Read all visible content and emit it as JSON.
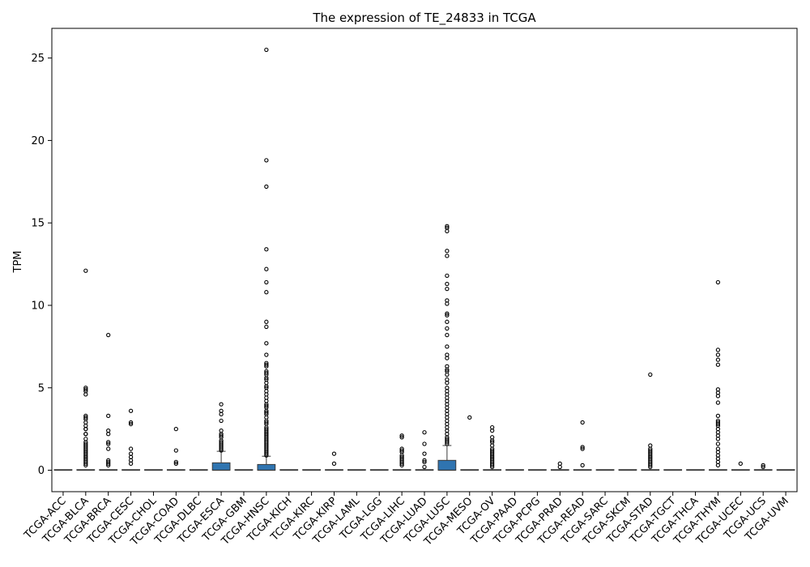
{
  "chart_data": {
    "type": "box",
    "title": "The expression of TE_24833 in TCGA",
    "xlabel": "",
    "ylabel": "TPM",
    "ylim": [
      -1.3,
      26.8
    ],
    "yticks": [
      0,
      5,
      10,
      15,
      20,
      25
    ],
    "categories": [
      "TCGA-ACC",
      "TCGA-BLCA",
      "TCGA-BRCA",
      "TCGA-CESC",
      "TCGA-CHOL",
      "TCGA-COAD",
      "TCGA-DLBC",
      "TCGA-ESCA",
      "TCGA-GBM",
      "TCGA-HNSC",
      "TCGA-KICH",
      "TCGA-KIRC",
      "TCGA-KIRP",
      "TCGA-LAML",
      "TCGA-LGG",
      "TCGA-LIHC",
      "TCGA-LUAD",
      "TCGA-LUSC",
      "TCGA-MESO",
      "TCGA-OV",
      "TCGA-PAAD",
      "TCGA-PCPG",
      "TCGA-PRAD",
      "TCGA-READ",
      "TCGA-SARC",
      "TCGA-SKCM",
      "TCGA-STAD",
      "TCGA-TGCT",
      "TCGA-THCA",
      "TCGA-THYM",
      "TCGA-UCEC",
      "TCGA-UCS",
      "TCGA-UVM"
    ],
    "boxes": [
      {
        "q1": 0,
        "median": 0,
        "q3": 0,
        "whisker_low": 0,
        "whisker_high": 0,
        "fliers": []
      },
      {
        "q1": 0,
        "median": 0,
        "q3": 0,
        "whisker_low": 0,
        "whisker_high": 0,
        "fliers": [
          12.1,
          5.0,
          4.9,
          4.8,
          4.6,
          3.3,
          3.2,
          3.1,
          2.9,
          2.7,
          2.5,
          2.5,
          2.2,
          2.2,
          1.9,
          1.7,
          1.6,
          1.5,
          1.4,
          1.3,
          1.2,
          1.1,
          1.0,
          0.9,
          0.8,
          0.7,
          0.6,
          0.5,
          0.4,
          0.3
        ]
      },
      {
        "q1": 0,
        "median": 0,
        "q3": 0,
        "whisker_low": 0,
        "whisker_high": 0,
        "fliers": [
          8.2,
          3.3,
          2.4,
          2.2,
          1.7,
          1.6,
          1.3,
          0.6,
          0.5,
          0.4,
          0.3
        ]
      },
      {
        "q1": 0,
        "median": 0,
        "q3": 0,
        "whisker_low": 0,
        "whisker_high": 0,
        "fliers": [
          3.6,
          2.9,
          2.8,
          1.3,
          1.0,
          0.8,
          0.6,
          0.4
        ]
      },
      {
        "q1": 0,
        "median": 0,
        "q3": 0,
        "whisker_low": 0,
        "whisker_high": 0,
        "fliers": []
      },
      {
        "q1": 0,
        "median": 0,
        "q3": 0,
        "whisker_low": 0,
        "whisker_high": 0,
        "fliers": [
          2.5,
          1.2,
          0.5,
          0.4
        ]
      },
      {
        "q1": 0,
        "median": 0,
        "q3": 0,
        "whisker_low": 0,
        "whisker_high": 0,
        "fliers": []
      },
      {
        "q1": 0,
        "median": 0,
        "q3": 0.45,
        "whisker_low": 0,
        "whisker_high": 1.15,
        "fliers": [
          4.0,
          3.6,
          3.4,
          3.0,
          2.4,
          2.2,
          2.1,
          2.0,
          1.8,
          1.7,
          1.6,
          1.5,
          1.4,
          1.3,
          1.2
        ]
      },
      {
        "q1": 0,
        "median": 0,
        "q3": 0,
        "whisker_low": 0,
        "whisker_high": 0,
        "fliers": []
      },
      {
        "q1": 0,
        "median": 0,
        "q3": 0.35,
        "whisker_low": 0,
        "whisker_high": 0.85,
        "fliers": [
          25.5,
          18.8,
          17.2,
          13.4,
          12.2,
          11.4,
          10.8,
          9.0,
          8.7,
          7.7,
          7.0,
          6.5,
          6.4,
          6.3,
          6.0,
          5.9,
          5.8,
          5.6,
          5.5,
          5.3,
          5.1,
          5.0,
          4.8,
          4.6,
          4.4,
          4.2,
          4.0,
          3.9,
          3.8,
          3.6,
          3.5,
          3.4,
          3.2,
          3.0,
          2.9,
          2.8,
          2.6,
          2.5,
          2.4,
          2.3,
          2.2,
          2.1,
          2.0,
          1.9,
          1.8,
          1.7,
          1.6,
          1.5,
          1.4,
          1.3,
          1.2,
          1.1,
          1.0,
          0.9
        ]
      },
      {
        "q1": 0,
        "median": 0,
        "q3": 0,
        "whisker_low": 0,
        "whisker_high": 0,
        "fliers": []
      },
      {
        "q1": 0,
        "median": 0,
        "q3": 0,
        "whisker_low": 0,
        "whisker_high": 0,
        "fliers": []
      },
      {
        "q1": 0,
        "median": 0,
        "q3": 0,
        "whisker_low": 0,
        "whisker_high": 0,
        "fliers": [
          1.0,
          0.4
        ]
      },
      {
        "q1": 0,
        "median": 0,
        "q3": 0,
        "whisker_low": 0,
        "whisker_high": 0,
        "fliers": []
      },
      {
        "q1": 0,
        "median": 0,
        "q3": 0,
        "whisker_low": 0,
        "whisker_high": 0,
        "fliers": []
      },
      {
        "q1": 0,
        "median": 0,
        "q3": 0,
        "whisker_low": 0,
        "whisker_high": 0,
        "fliers": [
          2.1,
          2.0,
          1.3,
          1.2,
          1.1,
          0.9,
          0.8,
          0.7,
          0.6,
          0.5,
          0.4,
          0.3
        ]
      },
      {
        "q1": 0,
        "median": 0,
        "q3": 0,
        "whisker_low": 0,
        "whisker_high": 0,
        "fliers": [
          2.3,
          1.6,
          1.0,
          0.6,
          0.5,
          0.2
        ]
      },
      {
        "q1": 0,
        "median": 0,
        "q3": 0.6,
        "whisker_low": 0,
        "whisker_high": 1.5,
        "fliers": [
          14.8,
          14.7,
          14.5,
          13.3,
          13.0,
          11.8,
          11.3,
          11.0,
          10.3,
          10.1,
          9.5,
          9.4,
          9.0,
          8.6,
          8.2,
          7.5,
          7.0,
          6.8,
          6.3,
          6.1,
          6.0,
          5.8,
          5.5,
          5.3,
          5.0,
          4.8,
          4.6,
          4.4,
          4.2,
          4.0,
          3.8,
          3.6,
          3.4,
          3.2,
          3.0,
          2.8,
          2.6,
          2.4,
          2.2,
          2.0,
          1.9,
          1.8,
          1.7,
          1.6
        ]
      },
      {
        "q1": 0,
        "median": 0,
        "q3": 0,
        "whisker_low": 0,
        "whisker_high": 0,
        "fliers": [
          3.2
        ]
      },
      {
        "q1": 0,
        "median": 0,
        "q3": 0,
        "whisker_low": 0,
        "whisker_high": 0,
        "fliers": [
          2.6,
          2.4,
          2.0,
          1.8,
          1.7,
          1.5,
          1.3,
          1.2,
          1.1,
          1.0,
          0.9,
          0.8,
          0.7,
          0.6,
          0.5,
          0.4,
          0.3,
          0.2
        ]
      },
      {
        "q1": 0,
        "median": 0,
        "q3": 0,
        "whisker_low": 0,
        "whisker_high": 0,
        "fliers": []
      },
      {
        "q1": 0,
        "median": 0,
        "q3": 0,
        "whisker_low": 0,
        "whisker_high": 0,
        "fliers": []
      },
      {
        "q1": 0,
        "median": 0,
        "q3": 0,
        "whisker_low": 0,
        "whisker_high": 0,
        "fliers": [
          0.4,
          0.2
        ]
      },
      {
        "q1": 0,
        "median": 0,
        "q3": 0,
        "whisker_low": 0,
        "whisker_high": 0,
        "fliers": [
          2.9,
          1.4,
          1.3,
          0.3
        ]
      },
      {
        "q1": 0,
        "median": 0,
        "q3": 0,
        "whisker_low": 0,
        "whisker_high": 0,
        "fliers": []
      },
      {
        "q1": 0,
        "median": 0,
        "q3": 0,
        "whisker_low": 0,
        "whisker_high": 0,
        "fliers": []
      },
      {
        "q1": 0,
        "median": 0,
        "q3": 0,
        "whisker_low": 0,
        "whisker_high": 0,
        "fliers": [
          5.8,
          1.5,
          1.3,
          1.2,
          1.1,
          1.0,
          0.9,
          0.8,
          0.7,
          0.6,
          0.5,
          0.4,
          0.3,
          0.2
        ]
      },
      {
        "q1": 0,
        "median": 0,
        "q3": 0,
        "whisker_low": 0,
        "whisker_high": 0,
        "fliers": []
      },
      {
        "q1": 0,
        "median": 0,
        "q3": 0,
        "whisker_low": 0,
        "whisker_high": 0,
        "fliers": []
      },
      {
        "q1": 0,
        "median": 0,
        "q3": 0,
        "whisker_low": 0,
        "whisker_high": 0,
        "fliers": [
          11.4,
          7.3,
          7.0,
          6.7,
          6.4,
          4.9,
          4.7,
          4.5,
          4.1,
          3.3,
          3.0,
          2.9,
          2.8,
          2.7,
          2.5,
          2.3,
          2.1,
          1.9,
          1.6,
          1.3,
          1.1,
          0.9,
          0.7,
          0.5,
          0.3
        ]
      },
      {
        "q1": 0,
        "median": 0,
        "q3": 0,
        "whisker_low": 0,
        "whisker_high": 0,
        "fliers": [
          0.4
        ]
      },
      {
        "q1": 0,
        "median": 0,
        "q3": 0,
        "whisker_low": 0,
        "whisker_high": 0,
        "fliers": [
          0.3,
          0.2
        ]
      },
      {
        "q1": 0,
        "median": 0,
        "q3": 0,
        "whisker_low": 0,
        "whisker_high": 0,
        "fliers": []
      }
    ],
    "colors": {
      "box": "#2f74b0",
      "line": "#3a3a3a",
      "flier": "#000000"
    },
    "grid": false,
    "legend": "none"
  }
}
